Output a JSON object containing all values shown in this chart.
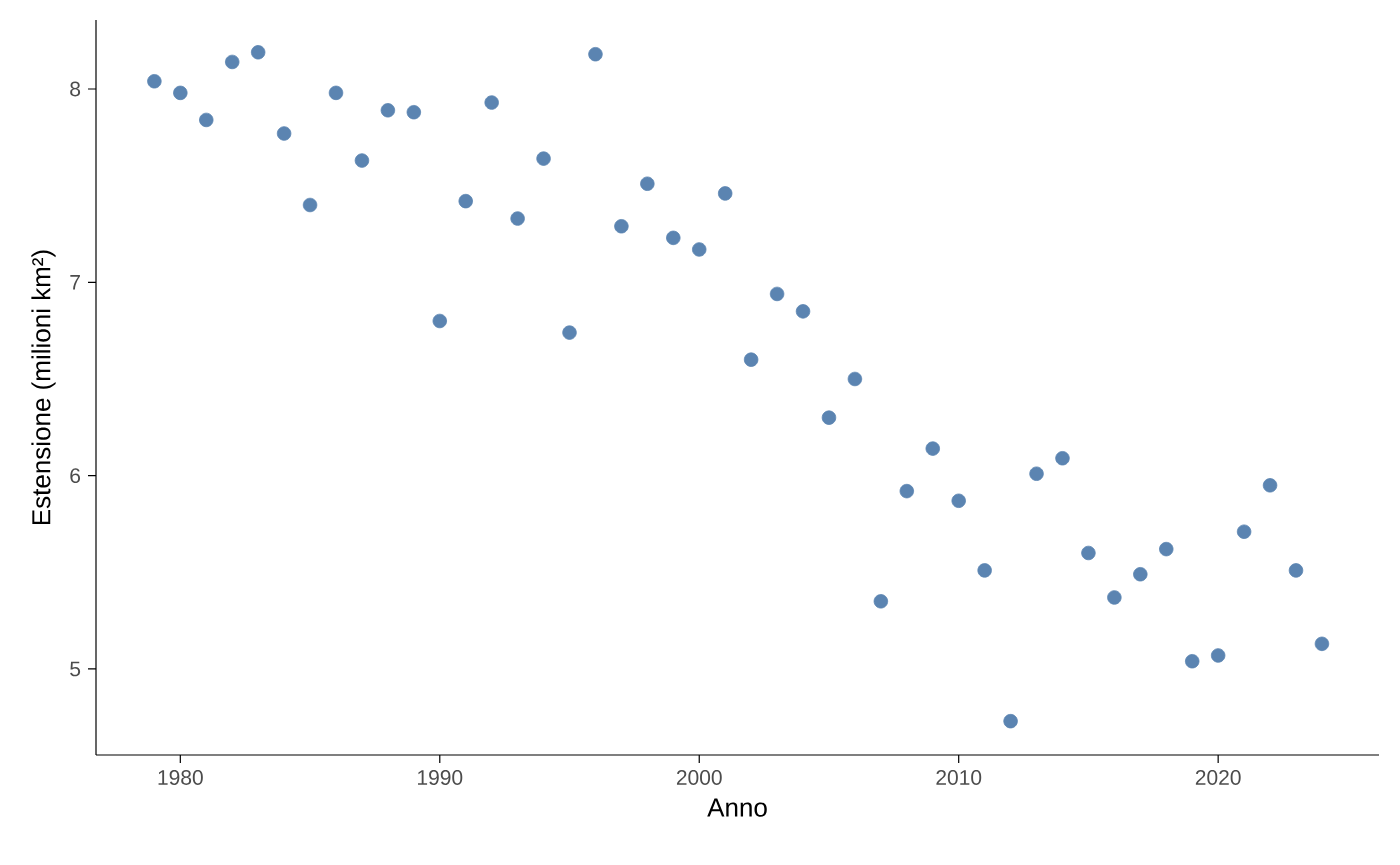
{
  "chart_data": {
    "type": "scatter",
    "xlabel": "Anno",
    "ylabel": "Estensione (milioni km²)",
    "x": [
      1979,
      1980,
      1981,
      1982,
      1983,
      1984,
      1985,
      1986,
      1987,
      1988,
      1989,
      1990,
      1991,
      1992,
      1993,
      1994,
      1995,
      1996,
      1997,
      1998,
      1999,
      2000,
      2001,
      2002,
      2003,
      2004,
      2005,
      2006,
      2007,
      2008,
      2009,
      2010,
      2011,
      2012,
      2013,
      2014,
      2015,
      2016,
      2017,
      2018,
      2019,
      2020,
      2021,
      2022,
      2023,
      2024
    ],
    "series": [
      {
        "color": "#5b84b1",
        "values": [
          8.04,
          7.98,
          7.84,
          8.14,
          8.19,
          7.77,
          7.4,
          7.98,
          7.63,
          7.89,
          7.88,
          6.8,
          7.42,
          7.93,
          7.33,
          7.64,
          6.74,
          8.18,
          7.29,
          7.51,
          7.23,
          7.17,
          7.46,
          6.6,
          6.94,
          6.85,
          6.3,
          6.5,
          5.35,
          5.92,
          6.14,
          5.87,
          5.51,
          4.73,
          6.01,
          6.09,
          5.6,
          5.37,
          5.49,
          5.62,
          5.04,
          5.07,
          5.71,
          5.95,
          5.51,
          5.13
        ]
      }
    ],
    "xlim": [
      1976.75,
      2026.2
    ],
    "ylim": [
      4.555,
      8.357
    ],
    "xticks": [
      1980,
      1990,
      2000,
      2010,
      2020
    ],
    "yticks": [
      5,
      6,
      7,
      8
    ],
    "marker": "circle",
    "grid": false
  }
}
